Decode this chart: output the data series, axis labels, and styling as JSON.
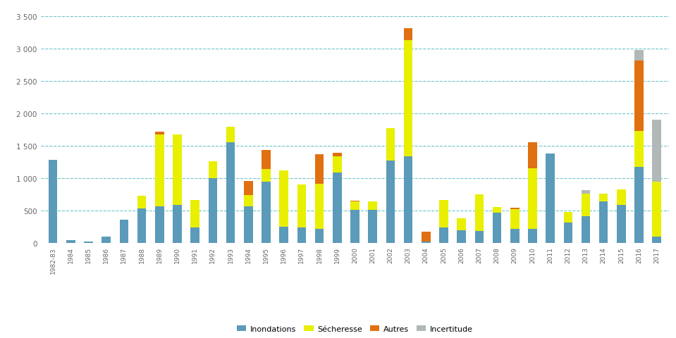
{
  "years": [
    "1982-83",
    "1984",
    "1985",
    "1986",
    "1987",
    "1988",
    "1989",
    "1990",
    "1991",
    "1992",
    "1993",
    "1994",
    "1995",
    "1996",
    "1997",
    "1998",
    "1999",
    "2000",
    "2001",
    "2002",
    "2003",
    "2004",
    "2005",
    "2006",
    "2007",
    "2008",
    "2009",
    "2010",
    "2011",
    "2012",
    "2013",
    "2014",
    "2015",
    "2016",
    "2017"
  ],
  "inondations": [
    1280,
    50,
    25,
    100,
    360,
    530,
    570,
    590,
    245,
    1000,
    1560,
    570,
    950,
    250,
    245,
    220,
    1090,
    510,
    510,
    1270,
    1340,
    30,
    245,
    200,
    185,
    465,
    215,
    220,
    1380,
    320,
    420,
    645,
    590,
    1170,
    100
  ],
  "secheresse": [
    0,
    0,
    0,
    0,
    0,
    200,
    1100,
    1080,
    420,
    260,
    230,
    170,
    195,
    870,
    660,
    695,
    250,
    130,
    130,
    505,
    1790,
    0,
    420,
    180,
    565,
    90,
    305,
    935,
    0,
    160,
    345,
    120,
    240,
    560,
    850
  ],
  "autres": [
    0,
    0,
    0,
    0,
    0,
    0,
    50,
    0,
    0,
    0,
    0,
    220,
    290,
    0,
    0,
    450,
    50,
    10,
    0,
    0,
    180,
    145,
    0,
    0,
    0,
    0,
    30,
    400,
    0,
    0,
    0,
    0,
    0,
    1080,
    0
  ],
  "incertitude": [
    0,
    0,
    0,
    0,
    0,
    0,
    0,
    0,
    0,
    0,
    0,
    0,
    0,
    0,
    0,
    0,
    0,
    0,
    0,
    0,
    0,
    0,
    0,
    0,
    0,
    0,
    0,
    0,
    0,
    0,
    50,
    0,
    0,
    165,
    950
  ],
  "color_inondations": "#5b9ab8",
  "color_secheresse": "#e8f000",
  "color_autres": "#e07010",
  "color_incertitude": "#b0b8b8",
  "ylim": [
    0,
    3600
  ],
  "yticks": [
    0,
    500,
    1000,
    1500,
    2000,
    2500,
    3000,
    3500
  ],
  "grid_color": "#6ec6cc",
  "background_color": "#ffffff",
  "legend_labels": [
    "Inondations",
    "Sécheresse",
    "Autres",
    "Incertitude"
  ]
}
